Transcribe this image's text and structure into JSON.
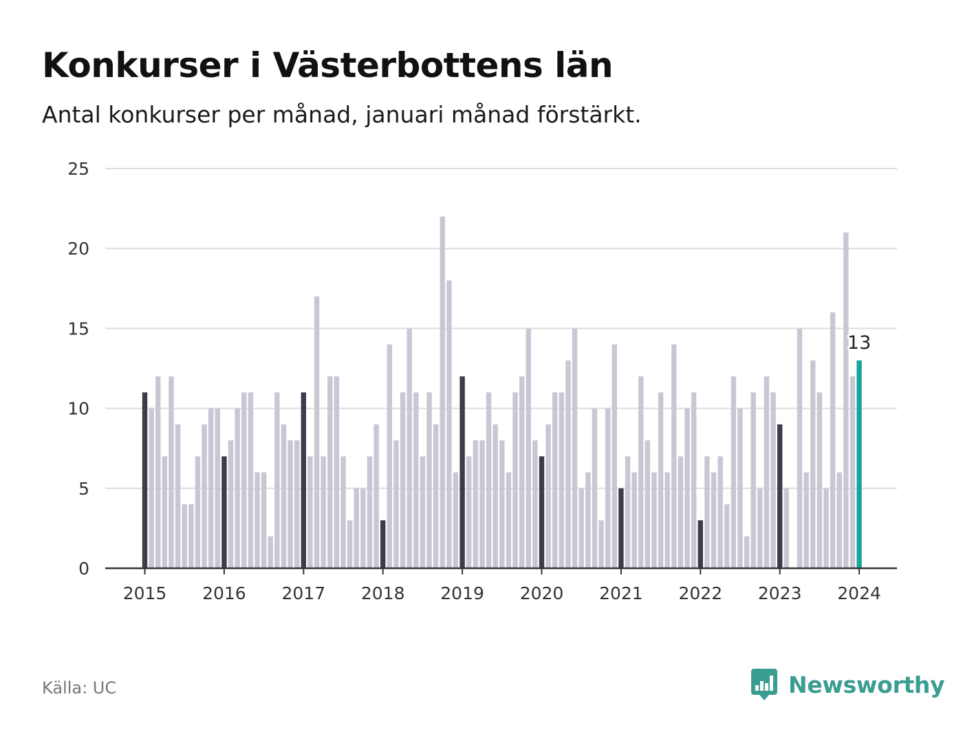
{
  "title": "Konkurser i Västerbottens län",
  "subtitle": "Antal konkurser per månad, januari månad förstärkt.",
  "source": "Källa: UC",
  "brand": "Newsworthy",
  "colors": {
    "bar_default": "#c8c7d3",
    "bar_january": "#3d3c4b",
    "bar_latest": "#18a69a",
    "gridline": "#dddddd",
    "axis": "#333333",
    "brand": "#3a9d91"
  },
  "chart_data": {
    "type": "bar",
    "title": "Konkurser i Västerbottens län",
    "subtitle": "Antal konkurser per månad, januari månad förstärkt.",
    "xlabel": "",
    "ylabel": "",
    "ylim": [
      0,
      25
    ],
    "yticks": [
      0,
      5,
      10,
      15,
      20,
      25
    ],
    "xtick_labels": [
      "2015",
      "2016",
      "2017",
      "2018",
      "2019",
      "2020",
      "2021",
      "2022",
      "2023",
      "2024"
    ],
    "start": "2015-01",
    "frequency": "monthly",
    "highlight": "january bars darker",
    "grid": true,
    "legend": "none",
    "annotation": {
      "period": "2024-01",
      "label": "13"
    },
    "values": [
      11,
      10,
      12,
      7,
      12,
      9,
      4,
      4,
      7,
      9,
      10,
      10,
      7,
      8,
      10,
      11,
      11,
      6,
      6,
      2,
      11,
      9,
      8,
      8,
      11,
      7,
      17,
      7,
      12,
      12,
      7,
      3,
      5,
      5,
      7,
      9,
      3,
      14,
      8,
      11,
      15,
      11,
      7,
      11,
      9,
      22,
      18,
      6,
      12,
      7,
      8,
      8,
      11,
      9,
      8,
      6,
      11,
      12,
      15,
      8,
      7,
      9,
      11,
      11,
      13,
      15,
      5,
      6,
      10,
      3,
      10,
      14,
      5,
      7,
      6,
      12,
      8,
      6,
      11,
      6,
      14,
      7,
      10,
      11,
      3,
      7,
      6,
      7,
      4,
      12,
      10,
      2,
      11,
      5,
      12,
      11,
      9,
      5,
      0,
      15,
      6,
      13,
      11,
      5,
      16,
      6,
      21,
      12,
      13
    ]
  }
}
